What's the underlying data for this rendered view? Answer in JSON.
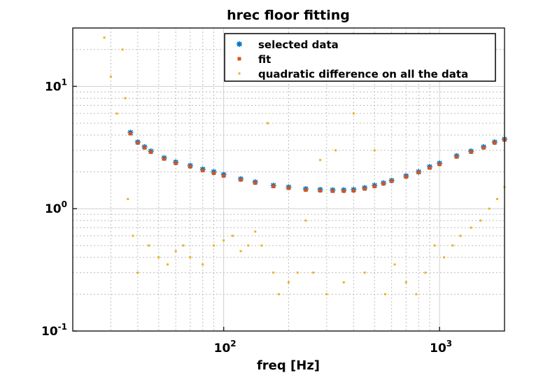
{
  "chart_data": {
    "type": "scatter",
    "title": "hrec floor fitting",
    "xlabel": "freq [Hz]",
    "ylabel": "",
    "xscale": "log",
    "yscale": "log",
    "xlim": [
      20,
      2000
    ],
    "ylim": [
      0.1,
      30
    ],
    "grid": "on (major and minor)",
    "legend_placement": "top-right",
    "x_ticks": [
      {
        "value": 100,
        "base": "10",
        "exp": "2"
      },
      {
        "value": 1000,
        "base": "10",
        "exp": "3"
      }
    ],
    "y_ticks": [
      {
        "value": 0.1,
        "base": "10",
        "exp": "-1"
      },
      {
        "value": 1,
        "base": "10",
        "exp": "0"
      },
      {
        "value": 10,
        "base": "10",
        "exp": "1"
      }
    ],
    "series": [
      {
        "name": "selected data",
        "marker": "asterisk",
        "color": "#0072BD",
        "x": [
          37,
          40,
          43,
          46,
          53,
          60,
          70,
          80,
          90,
          100,
          120,
          140,
          170,
          200,
          240,
          280,
          320,
          360,
          400,
          450,
          500,
          550,
          600,
          700,
          800,
          900,
          1000,
          1200,
          1400,
          1600,
          1800,
          2000
        ],
        "y": [
          4.2,
          3.5,
          3.2,
          2.95,
          2.6,
          2.4,
          2.25,
          2.1,
          2.0,
          1.9,
          1.75,
          1.65,
          1.55,
          1.5,
          1.45,
          1.43,
          1.42,
          1.42,
          1.43,
          1.48,
          1.55,
          1.62,
          1.7,
          1.85,
          2.0,
          2.2,
          2.35,
          2.7,
          2.95,
          3.2,
          3.5,
          3.7
        ]
      },
      {
        "name": "fit",
        "marker": "square",
        "color": "#D95319",
        "x": [
          37,
          40,
          43,
          46,
          53,
          60,
          70,
          80,
          90,
          100,
          120,
          140,
          170,
          200,
          240,
          280,
          320,
          360,
          400,
          450,
          500,
          550,
          600,
          700,
          800,
          900,
          1000,
          1200,
          1400,
          1600,
          1800,
          2000
        ],
        "y": [
          4.1,
          3.45,
          3.15,
          2.9,
          2.55,
          2.35,
          2.2,
          2.05,
          1.95,
          1.85,
          1.72,
          1.62,
          1.52,
          1.47,
          1.42,
          1.4,
          1.39,
          1.39,
          1.4,
          1.45,
          1.52,
          1.6,
          1.68,
          1.82,
          1.98,
          2.15,
          2.3,
          2.65,
          2.9,
          3.15,
          3.45,
          3.65
        ]
      },
      {
        "name": "quadratic difference on all the data",
        "marker": "dot",
        "color": "#EDB120",
        "x": [
          28,
          30,
          32,
          34,
          35,
          36,
          38,
          40,
          45,
          50,
          55,
          60,
          65,
          70,
          80,
          90,
          100,
          110,
          120,
          130,
          140,
          150,
          160,
          170,
          180,
          200,
          220,
          240,
          260,
          280,
          300,
          330,
          360,
          400,
          450,
          500,
          560,
          620,
          700,
          780,
          860,
          950,
          1050,
          1150,
          1250,
          1400,
          1550,
          1700,
          1850,
          2000
        ],
        "y": [
          25,
          12,
          6,
          20,
          8,
          1.2,
          0.6,
          0.3,
          0.5,
          0.4,
          0.35,
          0.45,
          0.5,
          0.4,
          0.35,
          0.5,
          0.55,
          0.6,
          0.45,
          0.5,
          0.65,
          0.5,
          5,
          0.3,
          0.2,
          0.25,
          0.3,
          0.8,
          0.3,
          2.5,
          0.2,
          3.0,
          0.25,
          6,
          0.3,
          3,
          0.2,
          0.35,
          0.25,
          0.2,
          0.3,
          0.5,
          0.4,
          0.5,
          0.6,
          0.7,
          0.8,
          1.0,
          1.2,
          1.5
        ]
      }
    ]
  }
}
